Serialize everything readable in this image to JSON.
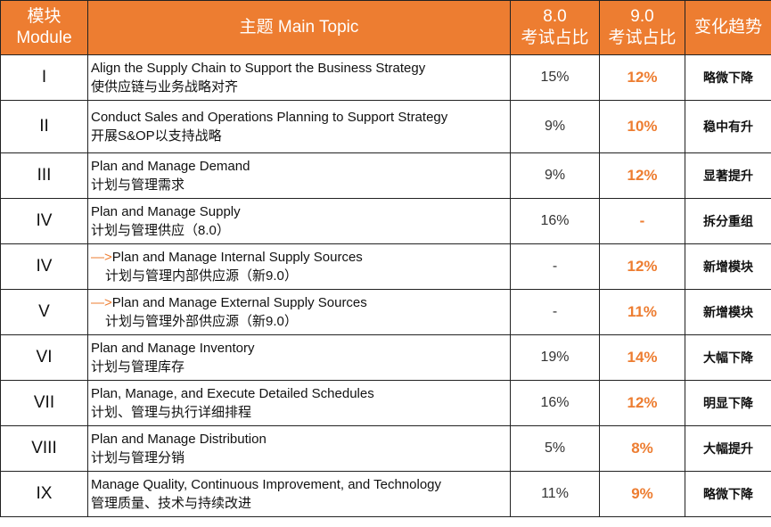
{
  "colors": {
    "header_bg": "#ED7D31",
    "accent": "#ED7D31"
  },
  "header": {
    "module": [
      "模块",
      "Module"
    ],
    "topic": "主题 Main Topic",
    "v8": [
      "8.0",
      "考试占比"
    ],
    "v9": [
      "9.0",
      "考试占比"
    ],
    "trend": "变化趋势"
  },
  "rows": [
    {
      "module": "I",
      "en": "Align the Supply Chain to Support the Business Strategy",
      "zh": "使供应链与业务战略对齐",
      "v8": "15%",
      "v9": "12%",
      "trend": "略微下降"
    },
    {
      "module": "II",
      "en": "Conduct Sales and Operations Planning to Support Strategy",
      "zh": "开展S&OP以支持战略",
      "v8": "9%",
      "v9": "10%",
      "trend": "稳中有升"
    },
    {
      "module": "III",
      "en": "Plan and Manage Demand",
      "zh": "计划与管理需求",
      "v8": "9%",
      "v9": "12%",
      "trend": "显著提升"
    },
    {
      "module": "IV",
      "en": "Plan and Manage Supply",
      "zh": "计划与管理供应（8.0）",
      "v8": "16%",
      "v9": "-",
      "trend": "拆分重组"
    },
    {
      "module": "IV",
      "arrow": "—>",
      "en": "Plan and Manage Internal Supply Sources",
      "zh": "计划与管理内部供应源（新9.0）",
      "v8": "-",
      "v9": "12%",
      "trend": "新增模块"
    },
    {
      "module": "V",
      "arrow": "—>",
      "en": "Plan and Manage External Supply Sources",
      "zh": "计划与管理外部供应源（新9.0）",
      "v8": "-",
      "v9": "11%",
      "trend": "新增模块"
    },
    {
      "module": "VI",
      "en": "Plan and Manage Inventory",
      "zh": "计划与管理库存",
      "v8": "19%",
      "v9": "14%",
      "trend": "大幅下降"
    },
    {
      "module": "VII",
      "en": "Plan, Manage, and Execute Detailed Schedules",
      "zh": "计划、管理与执行详细排程",
      "v8": "16%",
      "v9": "12%",
      "trend": "明显下降"
    },
    {
      "module": "VIII",
      "en": "Plan and Manage Distribution",
      "zh": "计划与管理分销",
      "v8": "5%",
      "v9": "8%",
      "trend": "大幅提升"
    },
    {
      "module": "IX",
      "en": "Manage Quality, Continuous Improvement, and Technology",
      "zh": "管理质量、技术与持续改进",
      "v8": "11%",
      "v9": "9%",
      "trend": "略微下降"
    }
  ]
}
